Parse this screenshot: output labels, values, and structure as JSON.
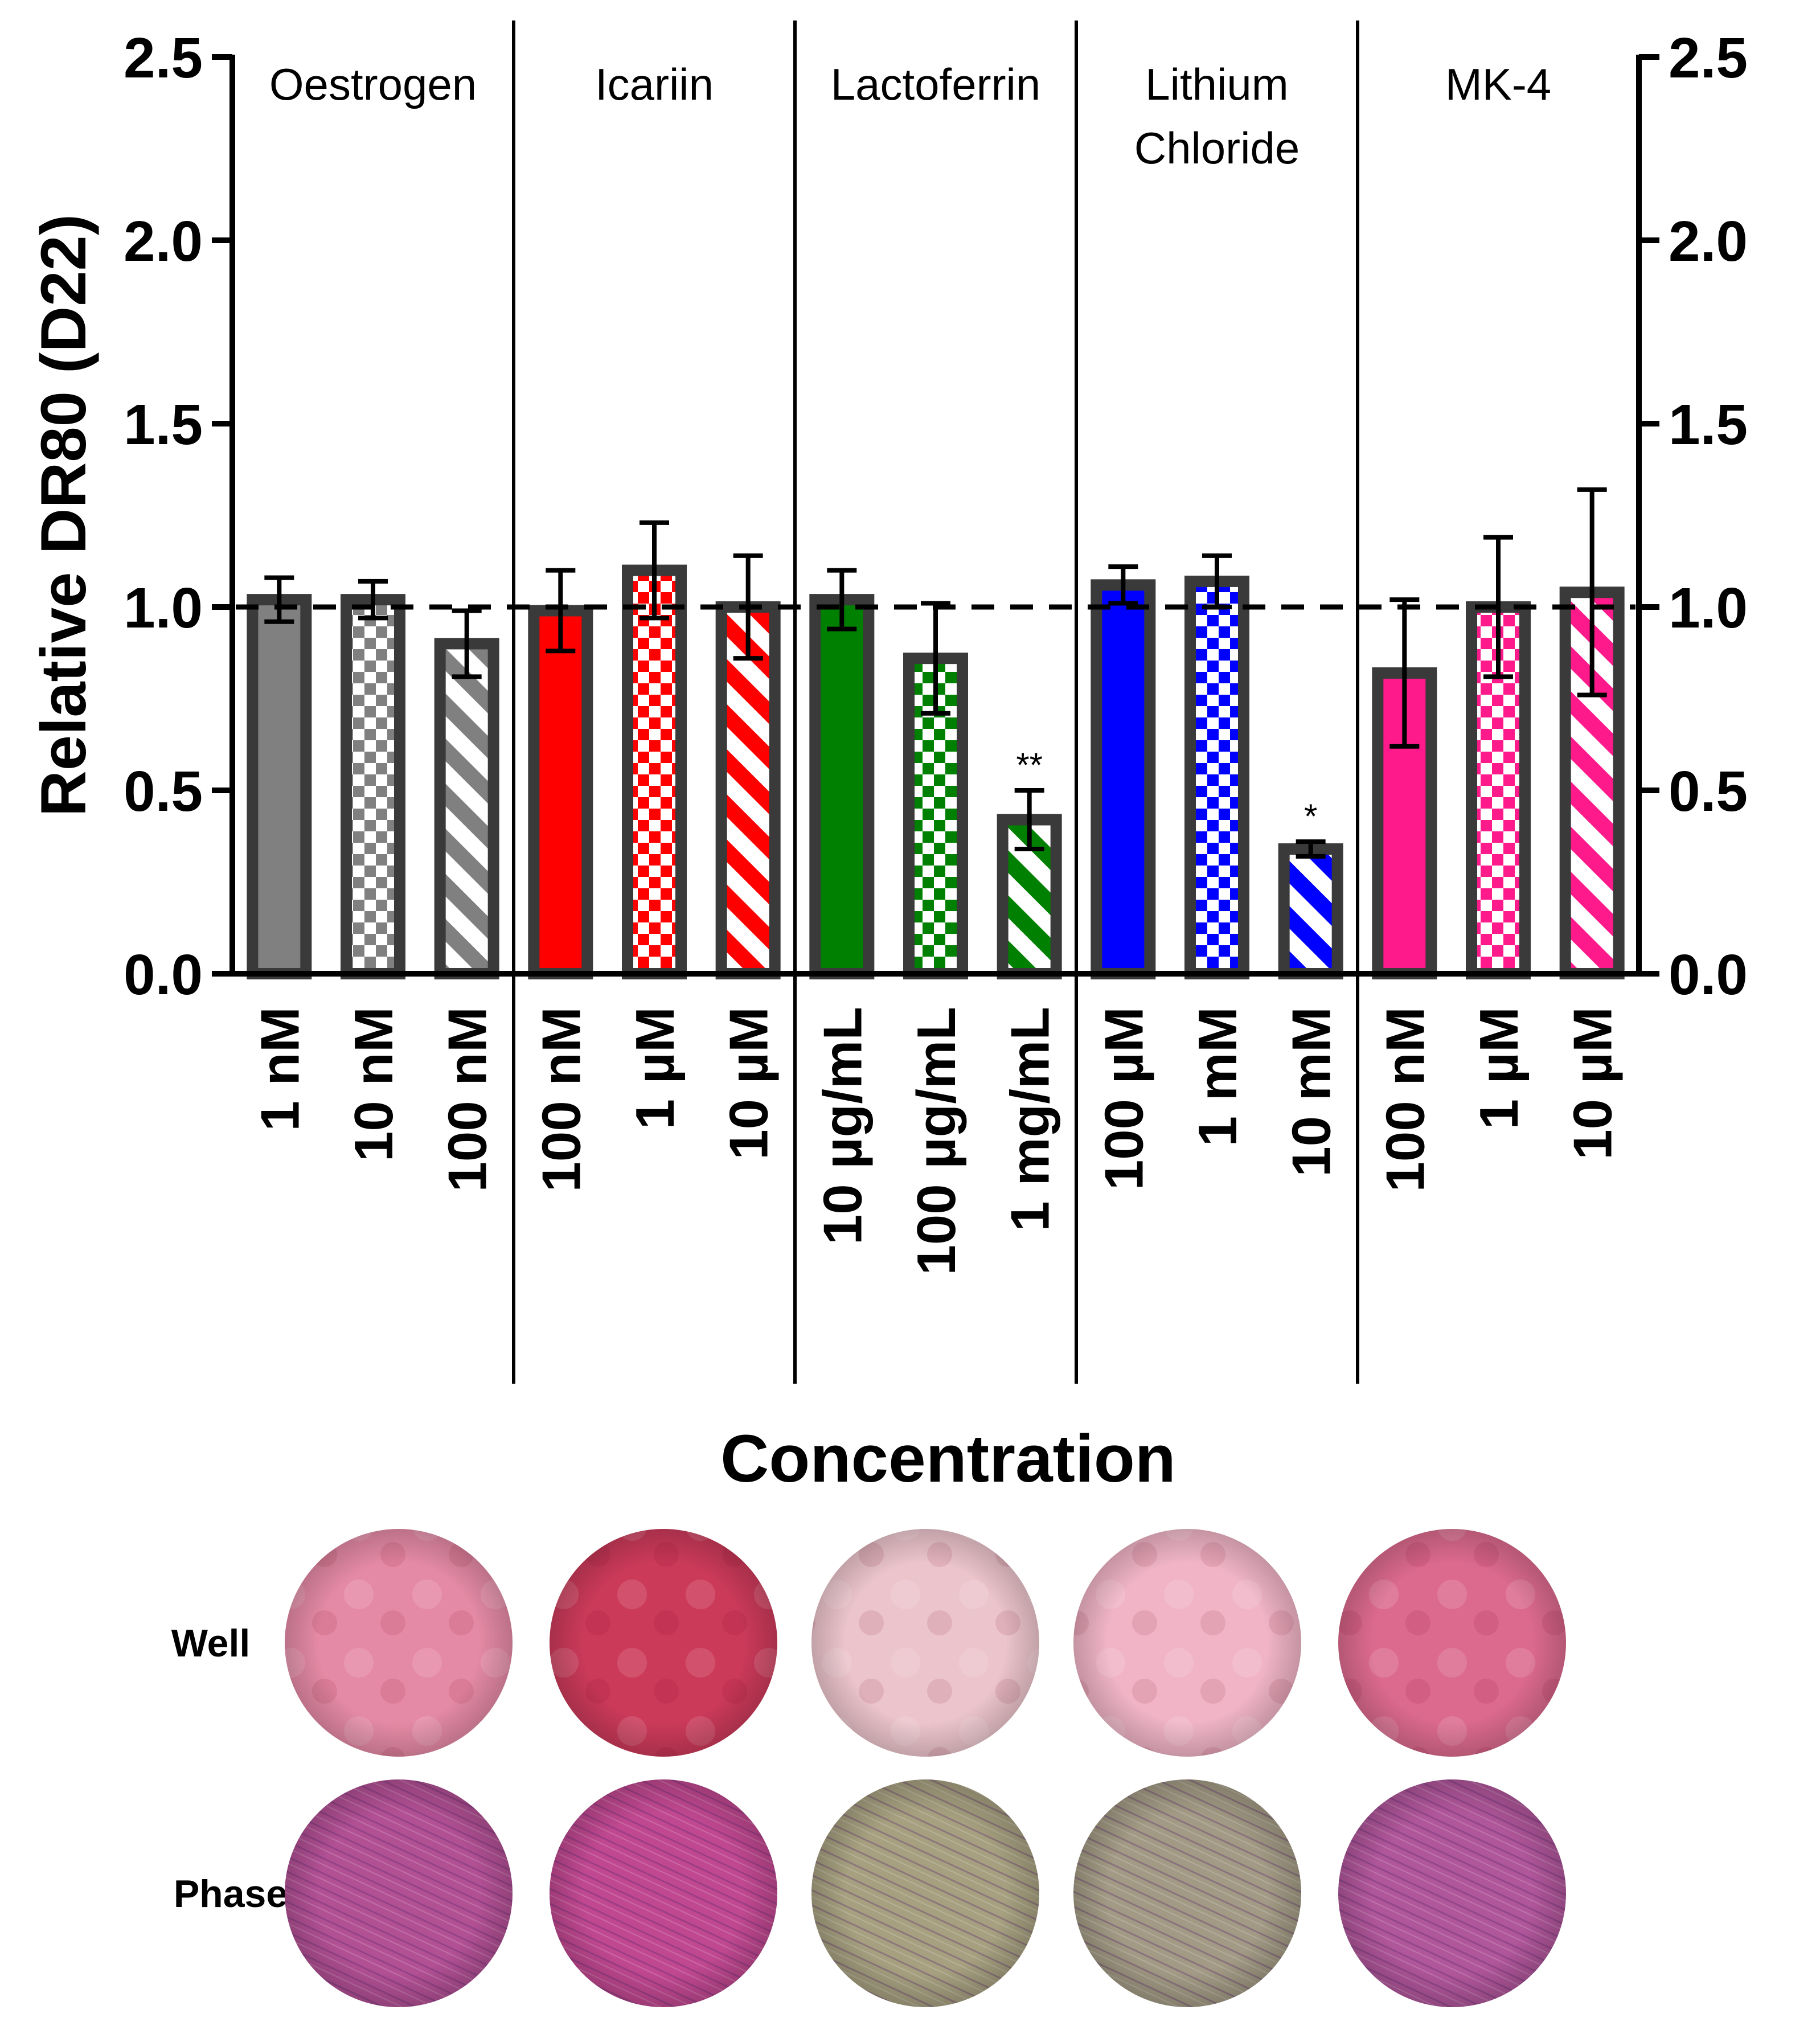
{
  "chart_data": {
    "type": "bar",
    "ylabel": "Relative DR80 (D22)",
    "xlabel": "Concentration",
    "ylim": [
      0,
      2.5
    ],
    "yticks": [
      "0.0",
      "0.5",
      "1.0",
      "1.5",
      "2.0",
      "2.5"
    ],
    "reference_line": 1.0,
    "groups": [
      {
        "name": "Oestrogen",
        "color": "#808080",
        "bars": [
          {
            "label": "1 nM",
            "value": 1.02,
            "error": 0.06,
            "pattern": "solid",
            "sig": ""
          },
          {
            "label": "10 nM",
            "value": 1.02,
            "error": 0.05,
            "pattern": "checker",
            "sig": ""
          },
          {
            "label": "100 nM",
            "value": 0.9,
            "error": 0.09,
            "pattern": "stripe",
            "sig": ""
          }
        ]
      },
      {
        "name": "Icariin",
        "color": "#ff0000",
        "bars": [
          {
            "label": "100 nM",
            "value": 0.99,
            "error": 0.11,
            "pattern": "solid",
            "sig": ""
          },
          {
            "label": "1 µM",
            "value": 1.1,
            "error": 0.13,
            "pattern": "checker",
            "sig": ""
          },
          {
            "label": "10 µM",
            "value": 1.0,
            "error": 0.14,
            "pattern": "stripe",
            "sig": ""
          }
        ]
      },
      {
        "name": "Lactoferrin",
        "color": "#008000",
        "bars": [
          {
            "label": "10 µg/mL",
            "value": 1.02,
            "error": 0.08,
            "pattern": "solid",
            "sig": ""
          },
          {
            "label": "100 µg/mL",
            "value": 0.86,
            "error": 0.15,
            "pattern": "checker",
            "sig": ""
          },
          {
            "label": "1 mg/mL",
            "value": 0.42,
            "error": 0.08,
            "pattern": "stripe",
            "sig": "**"
          }
        ]
      },
      {
        "name": "Lithium Chloride",
        "name_lines": [
          "Lithium",
          "Chloride"
        ],
        "color": "#0000ff",
        "bars": [
          {
            "label": "100 µM",
            "value": 1.06,
            "error": 0.05,
            "pattern": "solid",
            "sig": ""
          },
          {
            "label": "1 mM",
            "value": 1.07,
            "error": 0.07,
            "pattern": "checker",
            "sig": ""
          },
          {
            "label": "10 mM",
            "value": 0.34,
            "error": 0.02,
            "pattern": "stripe",
            "sig": "*"
          }
        ]
      },
      {
        "name": "MK-4",
        "color": "#ff1a8c",
        "bars": [
          {
            "label": "100 nM",
            "value": 0.82,
            "error": 0.2,
            "pattern": "solid",
            "sig": ""
          },
          {
            "label": "1 µM",
            "value": 1.0,
            "error": 0.19,
            "pattern": "checker",
            "sig": ""
          },
          {
            "label": "10 µM",
            "value": 1.04,
            "error": 0.28,
            "pattern": "stripe",
            "sig": ""
          }
        ]
      }
    ]
  },
  "micrographs": {
    "rows": [
      "Well",
      "Phase"
    ],
    "well_colors": [
      "#e58aa6",
      "#cc3a5a",
      "#ecc4cc",
      "#f0b4c6",
      "#dc6a8e"
    ],
    "phase_colors": [
      "#b25094",
      "#c04890",
      "#a6a080",
      "#a29a84",
      "#b0569a"
    ]
  }
}
